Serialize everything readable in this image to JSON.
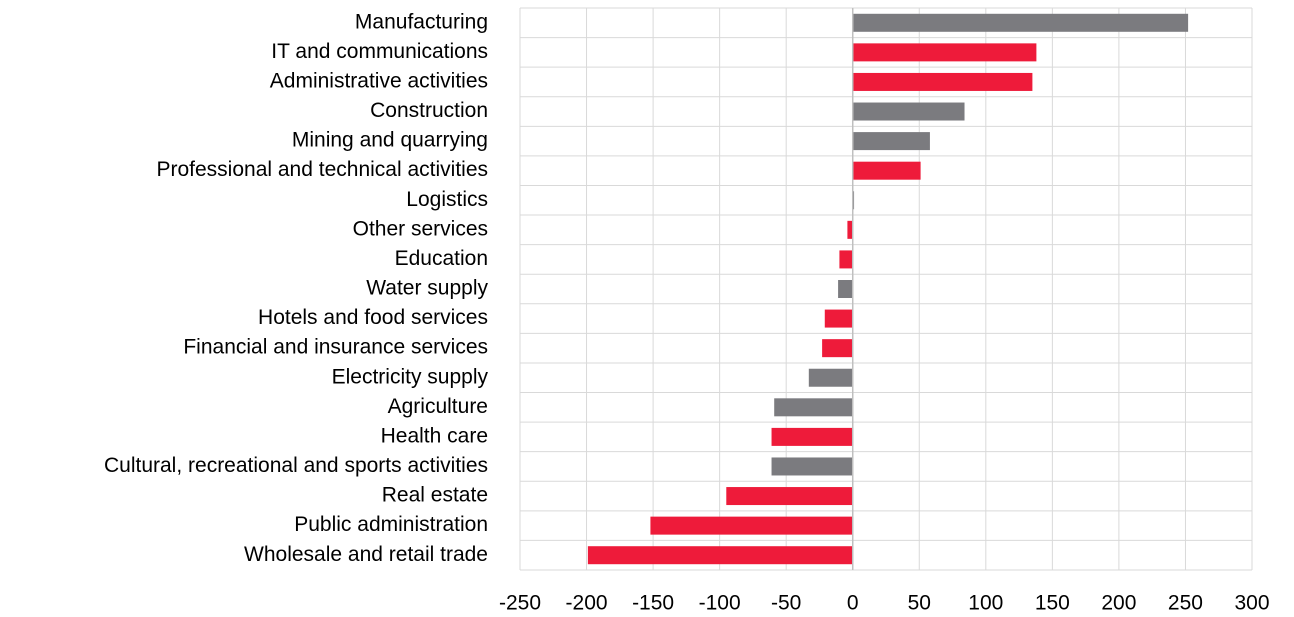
{
  "chart_data": {
    "type": "barh",
    "categories": [
      "Manufacturing",
      "IT and communications",
      "Administrative activities",
      "Construction",
      "Mining and quarrying",
      "Professional and technical activities",
      "Logistics",
      "Other services",
      "Education",
      "Water supply",
      "Hotels and food services",
      "Financial and insurance services",
      "Electricity supply",
      "Agriculture",
      "Health care",
      "Cultural, recreational and sports activities",
      "Real estate",
      "Public administration",
      "Wholesale and retail trade"
    ],
    "values": [
      252,
      138,
      135,
      84,
      58,
      51,
      1,
      -4,
      -10,
      -11,
      -21,
      -23,
      -33,
      -59,
      -61,
      -61,
      -95,
      -152,
      -199
    ],
    "colors": [
      "#7b7b7f",
      "#ee1b3a",
      "#ee1b3a",
      "#7b7b7f",
      "#7b7b7f",
      "#ee1b3a",
      "#7b7b7f",
      "#ee1b3a",
      "#ee1b3a",
      "#7b7b7f",
      "#ee1b3a",
      "#ee1b3a",
      "#7b7b7f",
      "#7b7b7f",
      "#ee1b3a",
      "#7b7b7f",
      "#ee1b3a",
      "#ee1b3a",
      "#ee1b3a"
    ],
    "xlim": [
      -250,
      300
    ],
    "xticks": [
      -250,
      -200,
      -150,
      -100,
      -50,
      0,
      50,
      100,
      150,
      200,
      250,
      300
    ],
    "grid": true
  }
}
